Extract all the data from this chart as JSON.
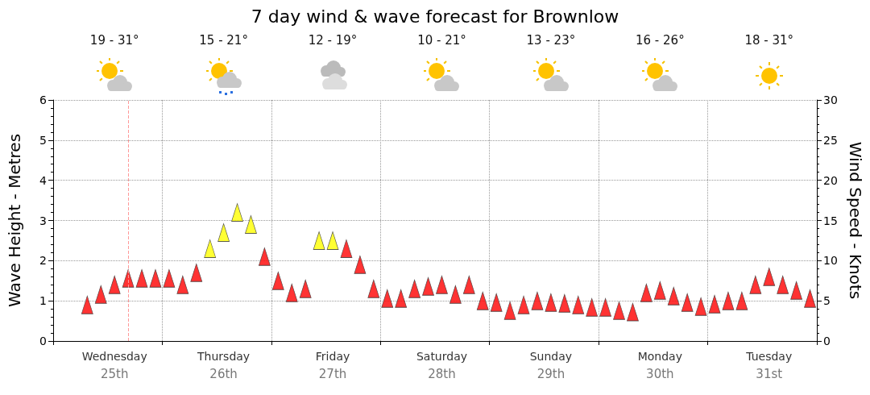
{
  "chart_data": {
    "type": "scatter",
    "title": "7 day wind & wave forecast for Brownlow",
    "ylabel": "Wave Height - Metres",
    "y2label": "Wind Speed - Knots",
    "categories": [
      null,
      null,
      null,
      null,
      "Wednesday\n25th",
      null,
      null,
      null,
      null,
      null,
      null,
      null,
      "Thursday\n26th",
      null,
      null,
      null,
      null,
      null,
      null,
      null,
      "Friday\n27th",
      null,
      null,
      null,
      null,
      null,
      null,
      null,
      "Saturday\n28th",
      null,
      null,
      null,
      null,
      null,
      null,
      null,
      "Sunday\n29th",
      null,
      null,
      null,
      null,
      null,
      null,
      null,
      "Monday\n30th",
      null,
      null,
      null,
      null,
      null,
      null,
      null,
      "Tuesday\n31st",
      null,
      null,
      null
    ],
    "series": [
      {
        "axis": "y2",
        "values": [
          null,
          null,
          4.5,
          5.8,
          7.0,
          7.8,
          7.8,
          7.8,
          7.8,
          7.0,
          8.5,
          11.5,
          13.5,
          16.0,
          14.5,
          10.5,
          7.5,
          6.0,
          6.5,
          12.5,
          12.5,
          11.5,
          9.5,
          6.5,
          5.3,
          5.3,
          6.5,
          6.8,
          7.0,
          5.8,
          7.0,
          5.0,
          4.8,
          3.8,
          4.5,
          5.0,
          4.8,
          4.7,
          4.5,
          4.2,
          4.2,
          3.8,
          3.6,
          6.0,
          6.3,
          5.6,
          4.8,
          4.3,
          4.6,
          5.0,
          5.0,
          7.0,
          8.0,
          7.0,
          6.3,
          5.3
        ],
        "colors": [
          null,
          null,
          "#ff0000",
          "#ff0000",
          "#ff0000",
          "#ff0000",
          "#ff0000",
          "#ff0000",
          "#ff0000",
          "#ff0000",
          "#ff0000",
          "#ffff00",
          "#ffff00",
          "#ffff00",
          "#ffff00",
          "#ff0000",
          "#ff0000",
          "#ff0000",
          "#ff0000",
          "#ffff00",
          "#ffff00",
          "#ff0000",
          "#ff0000",
          "#ff0000",
          "#ff0000",
          "#ff0000",
          "#ff0000",
          "#ff0000",
          "#ff0000",
          "#ff0000",
          "#ff0000",
          "#ff0000",
          "#ff0000",
          "#ff0000",
          "#ff0000",
          "#ff0000",
          "#ff0000",
          "#ff0000",
          "#ff0000",
          "#ff0000",
          "#ff0000",
          "#ff0000",
          "#ff0000",
          "#ff0000",
          "#ff0000",
          "#ff0000",
          "#ff0000",
          "#ff0000",
          "#ff0000",
          "#ff0000",
          "#ff0000",
          "#ff0000",
          "#ff0000",
          "#ff0000",
          "#ff0000",
          "#ff0000"
        ]
      }
    ],
    "annotations": [
      "19 - 31°",
      "15 - 21°",
      "12 - 19°",
      "10 - 21°",
      "13 - 23°",
      "16 - 26°",
      "18 - 31°"
    ],
    "ylim": [
      0,
      6
    ],
    "yticks": [
      0,
      1,
      2,
      3,
      4,
      5,
      6
    ],
    "y2lim": [
      0,
      30
    ],
    "y2ticks": [
      0,
      5,
      10,
      15,
      20,
      25,
      30
    ],
    "grid": true,
    "marker": "triangle"
  }
}
